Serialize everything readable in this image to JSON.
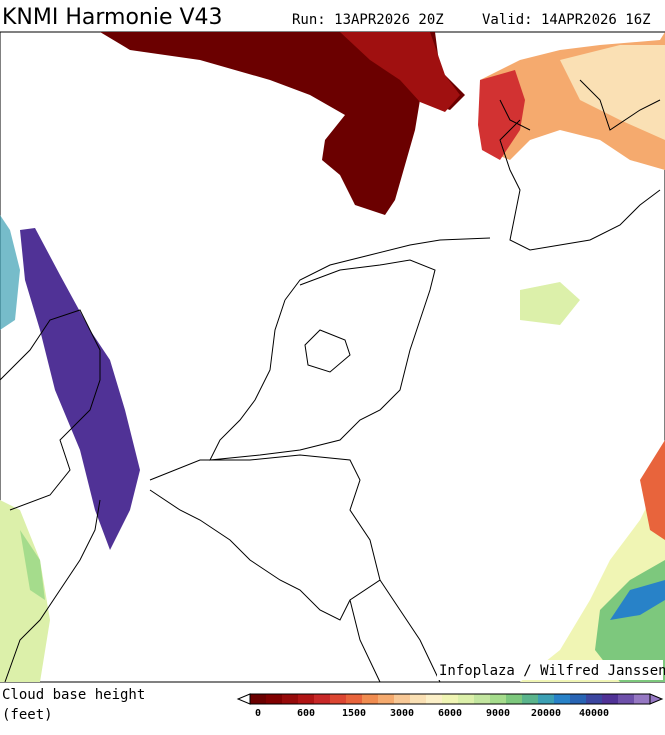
{
  "header": {
    "title": "KNMI Harmonie V43",
    "run": "Run: 13APR2026 20Z",
    "valid": "Valid: 14APR2026 16Z"
  },
  "map": {
    "credit": "Infoplaza / Wilfred Janssen"
  },
  "legend": {
    "title": "Cloud base height",
    "unit": "(feet)",
    "labels": [
      "0",
      "600",
      "1500",
      "3000",
      "6000",
      "9000",
      "20000",
      "40000"
    ],
    "colors": [
      "#6b0000",
      "#800000",
      "#960a0a",
      "#b01414",
      "#c82828",
      "#dc4632",
      "#e8643c",
      "#f08c50",
      "#f5aa6e",
      "#f8c896",
      "#fae0b4",
      "#fcf0c8",
      "#f0f5b4",
      "#dcf0aa",
      "#c3e6a0",
      "#a5dc8c",
      "#7dc87d",
      "#5ab48c",
      "#3ca0b4",
      "#2882c8",
      "#2864b4",
      "#3c46a0",
      "#503296",
      "#6e50aa",
      "#9678c3"
    ]
  }
}
